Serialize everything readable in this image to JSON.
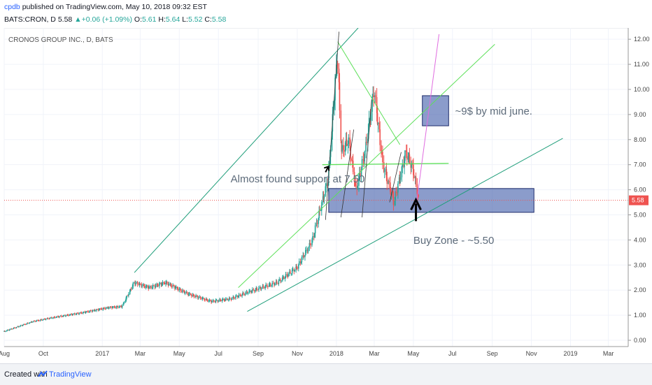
{
  "header": {
    "author": "cpdb",
    "published": "published on TradingView.com, May 10, 2018 09:32 EST",
    "ticker": "BATS:CRON, D",
    "last": "5.58",
    "change": "+0.06 (+1.09%)",
    "o_label": "O:",
    "o_value": "5.61",
    "h_label": "H:",
    "h_value": "5.64",
    "l_label": "L:",
    "l_value": "5.52",
    "c_label": "C:",
    "c_value": "5.58"
  },
  "footer": {
    "created_with": "Created with",
    "brand": "TradingView"
  },
  "colors": {
    "up": "#26a69a",
    "down": "#ef5350",
    "trend_dark": "#1f9e7a",
    "trend_light": "#5ee05a",
    "magenta": "#e06ce0",
    "box": "#3d5aa8",
    "price_line": "#ef5350"
  },
  "chart_data": {
    "type": "candlestick",
    "title": "CRONOS GROUP INC., D, BATS",
    "x_ticks": [
      "Aug",
      "Oct",
      "2017",
      "Mar",
      "May",
      "Jul",
      "Sep",
      "Nov",
      "2018",
      "Mar",
      "May",
      "Jul",
      "Sep",
      "Nov",
      "2019",
      "Mar"
    ],
    "y_ticks": [
      "12.00",
      "11.00",
      "10.00",
      "9.00",
      "8.00",
      "7.00",
      "6.00",
      "5.00",
      "4.00",
      "3.00",
      "2.00",
      "1.00",
      "0.00"
    ],
    "ylim": [
      -0.25,
      12.45
    ],
    "last_price": "5.58",
    "price_path": [
      [
        "2016-08-01",
        0.35
      ],
      [
        "2016-09-15",
        0.75
      ],
      [
        "2016-10-15",
        0.9
      ],
      [
        "2016-12-01",
        1.1
      ],
      [
        "2017-01-10",
        1.3
      ],
      [
        "2017-02-01",
        1.35
      ],
      [
        "2017-02-20",
        2.3
      ],
      [
        "2017-03-15",
        2.1
      ],
      [
        "2017-04-10",
        2.3
      ],
      [
        "2017-05-15",
        1.85
      ],
      [
        "2017-06-20",
        1.55
      ],
      [
        "2017-07-20",
        1.65
      ],
      [
        "2017-08-20",
        1.95
      ],
      [
        "2017-10-01",
        2.3
      ],
      [
        "2017-11-01",
        2.9
      ],
      [
        "2017-11-25",
        4.0
      ],
      [
        "2017-12-20",
        6.5
      ],
      [
        "2018-01-03",
        11.5
      ],
      [
        "2018-01-09",
        7.5
      ],
      [
        "2018-01-20",
        8.0
      ],
      [
        "2018-02-01",
        6.0
      ],
      [
        "2018-02-15",
        7.5
      ],
      [
        "2018-03-01",
        10.0
      ],
      [
        "2018-03-15",
        7.0
      ],
      [
        "2018-04-01",
        5.5
      ],
      [
        "2018-04-20",
        7.5
      ],
      [
        "2018-05-01",
        6.8
      ],
      [
        "2018-05-10",
        5.58
      ]
    ],
    "annotations": {
      "support_text": "Almost found support at 7.50",
      "target_text": "~9$ by mid june.",
      "buy_zone_text": "Buy Zone - ~5.50"
    },
    "zones": {
      "buy_zone": {
        "from": "2017-12-20",
        "to": "2018-11-05",
        "low": 5.1,
        "high": 6.05
      },
      "target_box": {
        "from": "2018-05-15",
        "to": "2018-06-25",
        "low": 8.55,
        "high": 9.75
      }
    }
  }
}
